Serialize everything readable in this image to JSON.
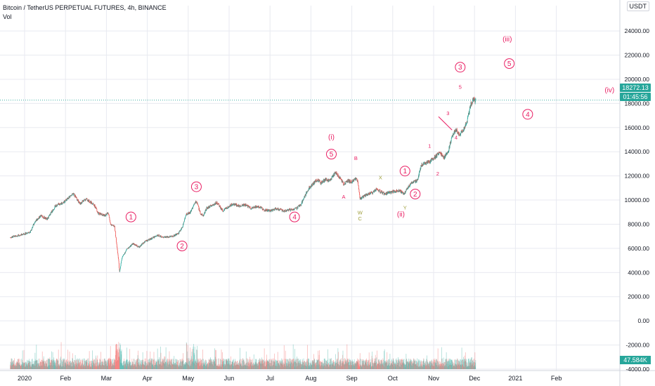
{
  "header": {
    "title": "Bitcoin / TetherUS PERPETUAL FUTURES, 4h, BINANCE",
    "volume_label": "Vol",
    "unit": "USDT"
  },
  "price_badges": {
    "last_price": "18272.13",
    "countdown": "01:45:56",
    "volume": "47.584K"
  },
  "colors": {
    "up": "#26a69a",
    "down": "#ef5350",
    "wave_label": "#e91e63",
    "corrective_label": "#9e9e3c",
    "grid": "#e8eaf0",
    "price_line": "#26a69a"
  },
  "chart_data": {
    "type": "candlestick",
    "symbol": "Bitcoin / TetherUS PERPETUAL FUTURES",
    "interval": "4h",
    "exchange": "BINANCE",
    "y_ticks": [
      24000,
      22000,
      20000,
      18000,
      16000,
      14000,
      12000,
      10000,
      8000,
      6000,
      4000,
      2000,
      0,
      -2000,
      -4000
    ],
    "y_tick_labels": [
      "24000.00",
      "22000.00",
      "20000.00",
      "18000.00",
      "16000.00",
      "14000.00",
      "12000.00",
      "10000.00",
      "8000.00",
      "6000.00",
      "4000.00",
      "2000.00",
      "0.00",
      "-2000.00",
      "-4000.00"
    ],
    "ylim": [
      -4000,
      25400
    ],
    "x_ticks": [
      {
        "label": "2020",
        "month": 0
      },
      {
        "label": "Feb",
        "month": 1
      },
      {
        "label": "Mar",
        "month": 2
      },
      {
        "label": "Apr",
        "month": 3
      },
      {
        "label": "May",
        "month": 4
      },
      {
        "label": "Jun",
        "month": 5
      },
      {
        "label": "Jul",
        "month": 6
      },
      {
        "label": "Aug",
        "month": 7
      },
      {
        "label": "Sep",
        "month": 8
      },
      {
        "label": "Oct",
        "month": 9
      },
      {
        "label": "Nov",
        "month": 10
      },
      {
        "label": "Dec",
        "month": 11
      },
      {
        "label": "2021",
        "month": 12
      },
      {
        "label": "Feb",
        "month": 13
      }
    ],
    "xlim_months": [
      0,
      14.9
    ],
    "last_price": 18272.13,
    "price_path": [
      [
        -0.35,
        6900
      ],
      [
        0.0,
        7200
      ],
      [
        0.15,
        7400
      ],
      [
        0.25,
        8200
      ],
      [
        0.4,
        8700
      ],
      [
        0.55,
        8400
      ],
      [
        0.75,
        9500
      ],
      [
        0.95,
        9800
      ],
      [
        1.1,
        10300
      ],
      [
        1.2,
        10500
      ],
      [
        1.35,
        9700
      ],
      [
        1.5,
        10100
      ],
      [
        1.7,
        9600
      ],
      [
        1.8,
        8900
      ],
      [
        1.95,
        8700
      ],
      [
        2.05,
        8900
      ],
      [
        2.1,
        8000
      ],
      [
        2.2,
        7800
      ],
      [
        2.3,
        5000
      ],
      [
        2.32,
        4000
      ],
      [
        2.38,
        5200
      ],
      [
        2.5,
        5900
      ],
      [
        2.65,
        6400
      ],
      [
        2.8,
        6100
      ],
      [
        2.95,
        6600
      ],
      [
        3.1,
        6800
      ],
      [
        3.25,
        7100
      ],
      [
        3.4,
        6900
      ],
      [
        3.6,
        7000
      ],
      [
        3.75,
        7200
      ],
      [
        3.85,
        7700
      ],
      [
        3.95,
        8800
      ],
      [
        4.05,
        9000
      ],
      [
        4.15,
        9700
      ],
      [
        4.2,
        9900
      ],
      [
        4.3,
        8900
      ],
      [
        4.37,
        8700
      ],
      [
        4.45,
        9300
      ],
      [
        4.55,
        9500
      ],
      [
        4.7,
        9800
      ],
      [
        4.85,
        9100
      ],
      [
        5.0,
        9500
      ],
      [
        5.1,
        9700
      ],
      [
        5.25,
        9500
      ],
      [
        5.4,
        9600
      ],
      [
        5.55,
        9300
      ],
      [
        5.7,
        9500
      ],
      [
        5.85,
        9200
      ],
      [
        6.0,
        9100
      ],
      [
        6.15,
        9300
      ],
      [
        6.35,
        9100
      ],
      [
        6.5,
        9200
      ],
      [
        6.65,
        9300
      ],
      [
        6.75,
        9600
      ],
      [
        6.85,
        10300
      ],
      [
        6.95,
        11000
      ],
      [
        7.05,
        11300
      ],
      [
        7.15,
        11700
      ],
      [
        7.25,
        11400
      ],
      [
        7.35,
        11700
      ],
      [
        7.45,
        11600
      ],
      [
        7.6,
        12300
      ],
      [
        7.7,
        11900
      ],
      [
        7.8,
        11300
      ],
      [
        7.9,
        11600
      ],
      [
        8.0,
        11500
      ],
      [
        8.1,
        11800
      ],
      [
        8.15,
        11500
      ],
      [
        8.2,
        10100
      ],
      [
        8.3,
        10300
      ],
      [
        8.4,
        10500
      ],
      [
        8.5,
        10600
      ],
      [
        8.6,
        10900
      ],
      [
        8.7,
        10700
      ],
      [
        8.8,
        10500
      ],
      [
        8.9,
        10600
      ],
      [
        9.0,
        10700
      ],
      [
        9.1,
        10800
      ],
      [
        9.2,
        10700
      ],
      [
        9.28,
        10500
      ],
      [
        9.35,
        10900
      ],
      [
        9.45,
        11400
      ],
      [
        9.6,
        11600
      ],
      [
        9.7,
        12900
      ],
      [
        9.85,
        13100
      ],
      [
        9.95,
        13300
      ],
      [
        10.05,
        13600
      ],
      [
        10.15,
        14000
      ],
      [
        10.25,
        13500
      ],
      [
        10.35,
        13900
      ],
      [
        10.45,
        15300
      ],
      [
        10.55,
        15800
      ],
      [
        10.65,
        15400
      ],
      [
        10.75,
        16000
      ],
      [
        10.82,
        16500
      ],
      [
        10.9,
        17800
      ],
      [
        10.97,
        18400
      ],
      [
        11.0,
        18200
      ],
      [
        11.03,
        18272
      ]
    ],
    "volume_zero_y": -4000,
    "volume_max": 3000,
    "elliott_wave_labels": [
      {
        "text": "1",
        "circled": true,
        "month": 2.6,
        "price": 8600,
        "color": "wave_label"
      },
      {
        "text": "2",
        "circled": true,
        "month": 3.85,
        "price": 6200,
        "color": "wave_label"
      },
      {
        "text": "3",
        "circled": true,
        "month": 4.2,
        "price": 11100,
        "color": "wave_label"
      },
      {
        "text": "4",
        "circled": true,
        "month": 6.6,
        "price": 8600,
        "color": "wave_label"
      },
      {
        "text": "(i)",
        "circled": false,
        "month": 7.5,
        "price": 15200,
        "color": "wave_label"
      },
      {
        "text": "5",
        "circled": true,
        "month": 7.5,
        "price": 13800,
        "color": "wave_label"
      },
      {
        "text": "B",
        "circled": false,
        "month": 8.1,
        "price": 13500,
        "color": "wave_label"
      },
      {
        "text": "A",
        "circled": false,
        "month": 7.8,
        "price": 10300,
        "color": "wave_label"
      },
      {
        "text": "W",
        "circled": false,
        "month": 8.2,
        "price": 9000,
        "color": "corrective_label"
      },
      {
        "text": "C",
        "circled": false,
        "month": 8.2,
        "price": 8500,
        "color": "corrective_label"
      },
      {
        "text": "X",
        "circled": false,
        "month": 8.7,
        "price": 11900,
        "color": "corrective_label"
      },
      {
        "text": "Y",
        "circled": false,
        "month": 9.3,
        "price": 9400,
        "color": "corrective_label"
      },
      {
        "text": "1",
        "circled": true,
        "month": 9.3,
        "price": 12400,
        "color": "wave_label"
      },
      {
        "text": "2",
        "circled": true,
        "month": 9.55,
        "price": 10500,
        "color": "wave_label"
      },
      {
        "text": "(ii)",
        "circled": false,
        "month": 9.2,
        "price": 8800,
        "color": "wave_label"
      },
      {
        "text": "1",
        "circled": false,
        "month": 9.9,
        "price": 14500,
        "color": "wave_label"
      },
      {
        "text": "2",
        "circled": false,
        "month": 10.1,
        "price": 12200,
        "color": "wave_label"
      },
      {
        "text": "3",
        "circled": false,
        "month": 10.35,
        "price": 17200,
        "color": "wave_label"
      },
      {
        "text": "4",
        "circled": false,
        "month": 10.55,
        "price": 15200,
        "color": "wave_label"
      },
      {
        "text": "5",
        "circled": false,
        "month": 10.65,
        "price": 19400,
        "color": "wave_label"
      },
      {
        "text": "3",
        "circled": true,
        "month": 10.65,
        "price": 21000,
        "color": "wave_label"
      },
      {
        "text": "(iii)",
        "circled": false,
        "month": 11.8,
        "price": 23300,
        "color": "wave_label"
      },
      {
        "text": "5",
        "circled": true,
        "month": 11.85,
        "price": 21300,
        "color": "wave_label"
      },
      {
        "text": "4",
        "circled": true,
        "month": 12.3,
        "price": 17100,
        "color": "wave_label"
      },
      {
        "text": "(iv)",
        "circled": false,
        "month": 14.3,
        "price": 19100,
        "color": "wave_label"
      }
    ],
    "trendline": {
      "from": [
        10.12,
        16900
      ],
      "to": [
        10.45,
        15800
      ]
    }
  }
}
